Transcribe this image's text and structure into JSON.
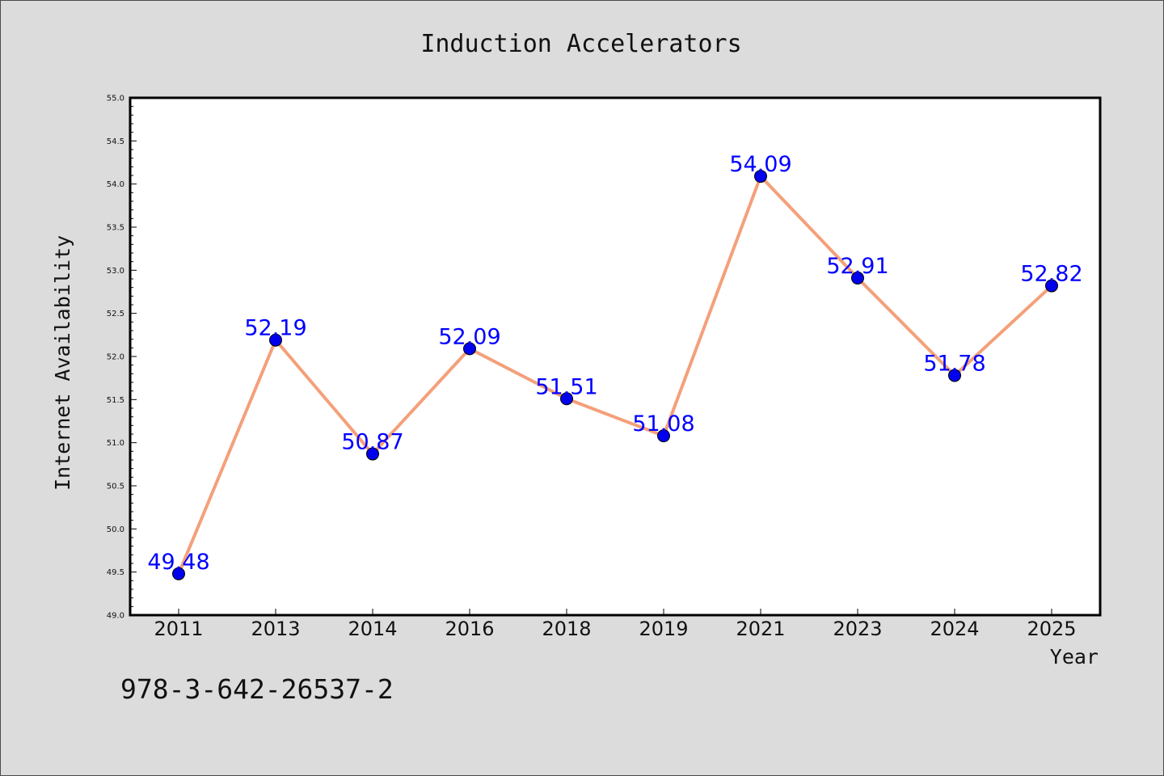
{
  "colors": {
    "figure_background": "#dcdcdc",
    "plot_background": "#ffffff",
    "line": "#f4a07a",
    "marker": "#0000ee",
    "data_label": "#0000ff",
    "text": "#111111"
  },
  "footer": {
    "isbn": "978-3-642-26537-2"
  },
  "chart_data": {
    "type": "line",
    "title": "Induction Accelerators",
    "xlabel": "Year",
    "ylabel": "Internet Availability",
    "categories": [
      "2011",
      "2013",
      "2014",
      "2016",
      "2018",
      "2019",
      "2021",
      "2023",
      "2024",
      "2025"
    ],
    "series": [
      {
        "values": [
          49.48,
          52.19,
          50.87,
          52.09,
          51.51,
          51.08,
          54.09,
          52.91,
          51.78,
          52.82
        ],
        "labels": [
          "49.48",
          "52.19",
          "50.87",
          "52.09",
          "51.51",
          "51.08",
          "54.09",
          "52.91",
          "51.78",
          "52.82"
        ]
      }
    ],
    "ylim": [
      49.0,
      55.0
    ],
    "y_major_ticks": [
      "49.0",
      "49.5",
      "50.0",
      "50.5",
      "51.0",
      "51.5",
      "52.0",
      "52.5",
      "53.0",
      "53.5",
      "54.0",
      "54.5",
      "55.0"
    ],
    "marker": "circle",
    "grid": false,
    "legend": "none"
  }
}
